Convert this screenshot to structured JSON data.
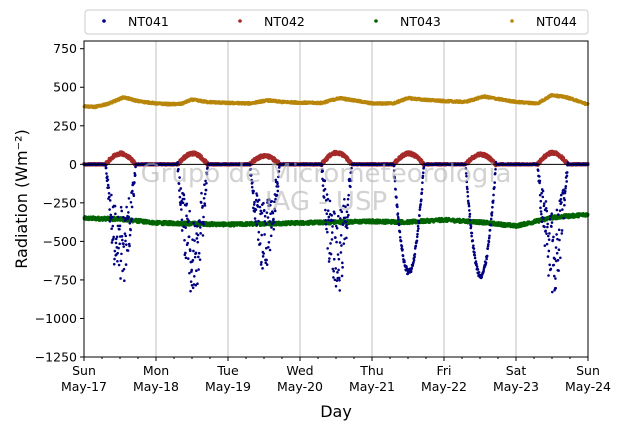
{
  "chart_data": {
    "type": "scatter",
    "xlabel": "Day",
    "ylabel": "Radiation (Wm⁻²)",
    "ylim": [
      -1250,
      800
    ],
    "yticks": [
      -1250,
      -1000,
      -750,
      -500,
      -250,
      0,
      250,
      500,
      750
    ],
    "ytick_labels": [
      "−1250",
      "−1000",
      "−750",
      "−500",
      "−250",
      "0",
      "250",
      "500",
      "750"
    ],
    "xlim": [
      0,
      7
    ],
    "xticks": [
      {
        "day": 0,
        "dow": "Sun",
        "date": "May-17"
      },
      {
        "day": 1,
        "dow": "Mon",
        "date": "May-18"
      },
      {
        "day": 2,
        "dow": "Tue",
        "date": "May-19"
      },
      {
        "day": 3,
        "dow": "Wed",
        "date": "May-20"
      },
      {
        "day": 4,
        "dow": "Thu",
        "date": "May-21"
      },
      {
        "day": 5,
        "dow": "Fri",
        "date": "May-22"
      },
      {
        "day": 6,
        "dow": "Sat",
        "date": "May-23"
      },
      {
        "day": 7,
        "dow": "Sun",
        "date": "May-24"
      }
    ],
    "grid": "vertical",
    "zero_line": true,
    "legend_position": "top",
    "watermark": [
      "Grupo de Micrometeorologia",
      "IAG - USP"
    ],
    "series": [
      {
        "name": "NT041",
        "color": "#000080",
        "kind": "night-zero-day-dip",
        "daily_minimum": [
          -820,
          -870,
          -700,
          -870,
          -700,
          -720,
          -850
        ]
      },
      {
        "name": "NT042",
        "color": "#a52a2a",
        "kind": "night-zero-day-bump",
        "daily_maximum": [
          70,
          70,
          55,
          75,
          70,
          65,
          75
        ]
      },
      {
        "name": "NT043",
        "color": "#006400",
        "kind": "band",
        "points": [
          [
            0,
            -350
          ],
          [
            0.5,
            -355
          ],
          [
            1,
            -380
          ],
          [
            1.5,
            -385
          ],
          [
            2,
            -390
          ],
          [
            2.5,
            -385
          ],
          [
            3,
            -380
          ],
          [
            3.5,
            -375
          ],
          [
            4,
            -370
          ],
          [
            4.5,
            -375
          ],
          [
            5,
            -360
          ],
          [
            5.5,
            -375
          ],
          [
            6,
            -400
          ],
          [
            6.5,
            -345
          ],
          [
            7,
            -325
          ]
        ]
      },
      {
        "name": "NT044",
        "color": "#b8860b",
        "kind": "band",
        "points": [
          [
            0,
            378
          ],
          [
            0.15,
            372
          ],
          [
            0.35,
            395
          ],
          [
            0.55,
            435
          ],
          [
            0.75,
            410
          ],
          [
            1,
            395
          ],
          [
            1.2,
            390
          ],
          [
            1.35,
            392
          ],
          [
            1.5,
            420
          ],
          [
            1.7,
            405
          ],
          [
            2,
            398
          ],
          [
            2.3,
            395
          ],
          [
            2.55,
            415
          ],
          [
            2.75,
            405
          ],
          [
            3,
            400
          ],
          [
            3.3,
            398
          ],
          [
            3.55,
            430
          ],
          [
            3.75,
            415
          ],
          [
            4,
            395
          ],
          [
            4.3,
            395
          ],
          [
            4.5,
            430
          ],
          [
            4.7,
            420
          ],
          [
            5,
            410
          ],
          [
            5.3,
            405
          ],
          [
            5.55,
            440
          ],
          [
            5.8,
            420
          ],
          [
            6,
            405
          ],
          [
            6.3,
            395
          ],
          [
            6.5,
            450
          ],
          [
            6.7,
            435
          ],
          [
            6.9,
            405
          ],
          [
            7,
            388
          ]
        ]
      }
    ]
  }
}
